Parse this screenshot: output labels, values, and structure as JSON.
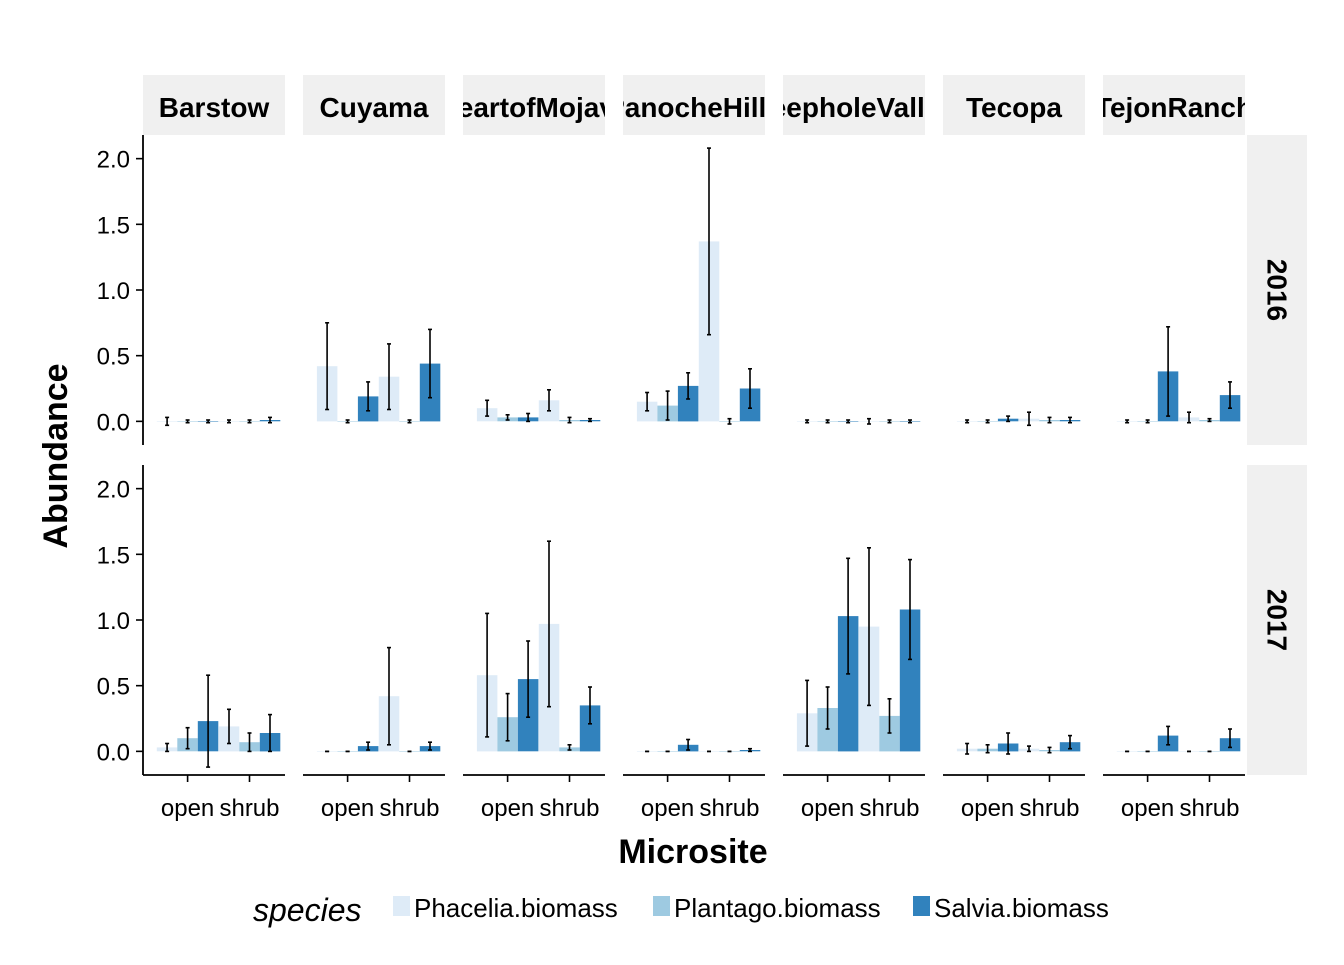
{
  "chart_data": {
    "type": "bar",
    "xlabel": "Microsite",
    "ylabel": "Abundance",
    "ylim": [
      -0.18,
      2.18
    ],
    "y_ticks": [
      "0.0",
      "0.5",
      "1.0",
      "1.5",
      "2.0"
    ],
    "x_categories": [
      "open",
      "shrub"
    ],
    "facet_columns": [
      "Barstow",
      "Cuyama",
      "HeartofMojave",
      "PanocheHills",
      "PeepholeValley",
      "Tecopa",
      "TejonRanch"
    ],
    "facet_rows": [
      "2016",
      "2017"
    ],
    "legend": {
      "title": "species",
      "position": "bottom",
      "entries": [
        "Phacelia.biomass",
        "Plantago.biomass",
        "Salvia.biomass"
      ]
    },
    "colors": {
      "Phacelia.biomass": "#deebf7",
      "Plantago.biomass": "#9ecae1",
      "Salvia.biomass": "#3182bd",
      "strip": "#f0f0f0",
      "axis": "#000000"
    },
    "grid": false,
    "panels": [
      {
        "row": "2016",
        "col": "Barstow",
        "open": [
          [
            0,
            0.03
          ],
          [
            0,
            0.01
          ],
          [
            0,
            0.01
          ]
        ],
        "shrub": [
          [
            0,
            0.01
          ],
          [
            0,
            0.01
          ],
          [
            0.01,
            0.02
          ]
        ]
      },
      {
        "row": "2016",
        "col": "Cuyama",
        "open": [
          [
            0.42,
            0.33
          ],
          [
            0,
            0.01
          ],
          [
            0.19,
            0.11
          ]
        ],
        "shrub": [
          [
            0.34,
            0.25
          ],
          [
            0,
            0.01
          ],
          [
            0.44,
            0.26
          ]
        ]
      },
      {
        "row": "2016",
        "col": "HeartofMojave",
        "open": [
          [
            0.1,
            0.06
          ],
          [
            0.03,
            0.02
          ],
          [
            0.03,
            0.03
          ]
        ],
        "shrub": [
          [
            0.16,
            0.08
          ],
          [
            0.01,
            0.02
          ],
          [
            0.01,
            0.01
          ]
        ]
      },
      {
        "row": "2016",
        "col": "PanocheHills",
        "open": [
          [
            0.15,
            0.07
          ],
          [
            0.12,
            0.11
          ],
          [
            0.27,
            0.1
          ]
        ],
        "shrub": [
          [
            1.37,
            0.71
          ],
          [
            0,
            0.02
          ],
          [
            0.25,
            0.15
          ]
        ]
      },
      {
        "row": "2016",
        "col": "PeepholeValley",
        "open": [
          [
            0,
            0.01
          ],
          [
            0,
            0.01
          ],
          [
            0,
            0.01
          ]
        ],
        "shrub": [
          [
            0,
            0.02
          ],
          [
            0,
            0.01
          ],
          [
            0,
            0.01
          ]
        ]
      },
      {
        "row": "2016",
        "col": "Tecopa",
        "open": [
          [
            0,
            0.01
          ],
          [
            0,
            0.01
          ],
          [
            0.02,
            0.02
          ]
        ],
        "shrub": [
          [
            0.02,
            0.05
          ],
          [
            0.01,
            0.02
          ],
          [
            0.01,
            0.02
          ]
        ]
      },
      {
        "row": "2016",
        "col": "TejonRanch",
        "open": [
          [
            0,
            0.01
          ],
          [
            0,
            0.01
          ],
          [
            0.38,
            0.34
          ]
        ],
        "shrub": [
          [
            0.03,
            0.04
          ],
          [
            0.01,
            0.01
          ],
          [
            0.2,
            0.1
          ]
        ]
      },
      {
        "row": "2017",
        "col": "Barstow",
        "open": [
          [
            0.03,
            0.03
          ],
          [
            0.1,
            0.08
          ],
          [
            0.23,
            0.35
          ]
        ],
        "shrub": [
          [
            0.19,
            0.13
          ],
          [
            0.07,
            0.07
          ],
          [
            0.14,
            0.14
          ]
        ]
      },
      {
        "row": "2017",
        "col": "Cuyama",
        "open": [
          [
            0,
            0
          ],
          [
            0,
            0
          ],
          [
            0.04,
            0.03
          ]
        ],
        "shrub": [
          [
            0.42,
            0.37
          ],
          [
            0,
            0
          ],
          [
            0.04,
            0.03
          ]
        ]
      },
      {
        "row": "2017",
        "col": "HeartofMojave",
        "open": [
          [
            0.58,
            0.47
          ],
          [
            0.26,
            0.18
          ],
          [
            0.55,
            0.29
          ]
        ],
        "shrub": [
          [
            0.97,
            0.63
          ],
          [
            0.03,
            0.02
          ],
          [
            0.35,
            0.14
          ]
        ]
      },
      {
        "row": "2017",
        "col": "PanocheHills",
        "open": [
          [
            0,
            0
          ],
          [
            0,
            0
          ],
          [
            0.05,
            0.04
          ]
        ],
        "shrub": [
          [
            0,
            0
          ],
          [
            0,
            0
          ],
          [
            0.01,
            0.01
          ]
        ]
      },
      {
        "row": "2017",
        "col": "PeepholeValley",
        "open": [
          [
            0.29,
            0.25
          ],
          [
            0.33,
            0.16
          ],
          [
            1.03,
            0.44
          ]
        ],
        "shrub": [
          [
            0.95,
            0.6
          ],
          [
            0.27,
            0.13
          ],
          [
            1.08,
            0.38
          ]
        ]
      },
      {
        "row": "2017",
        "col": "Tecopa",
        "open": [
          [
            0.02,
            0.04
          ],
          [
            0.02,
            0.03
          ],
          [
            0.06,
            0.08
          ]
        ],
        "shrub": [
          [
            0.02,
            0.02
          ],
          [
            0.01,
            0.02
          ],
          [
            0.07,
            0.05
          ]
        ]
      },
      {
        "row": "2017",
        "col": "TejonRanch",
        "open": [
          [
            0,
            0
          ],
          [
            0,
            0
          ],
          [
            0.12,
            0.07
          ]
        ],
        "shrub": [
          [
            0,
            0
          ],
          [
            0,
            0
          ],
          [
            0.1,
            0.07
          ]
        ]
      }
    ]
  }
}
